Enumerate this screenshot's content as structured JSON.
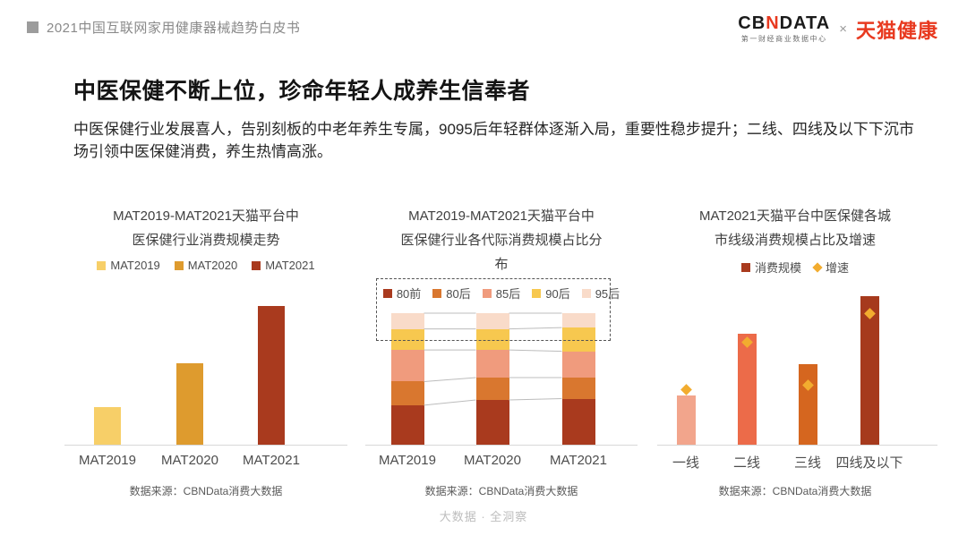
{
  "header": {
    "doc_title": "2021中国互联网家用健康器械趋势白皮书",
    "logo": {
      "cbn_prefix": "CB",
      "cbn_mid": "N",
      "cbn_suffix": "DATA",
      "cbn_tagline": "第一财经商业数据中心",
      "separator": "×",
      "partner": "天猫健康",
      "brand_red": "#e8391f"
    }
  },
  "headline": {
    "title": "中医保健不断上位，珍命年轻人成养生信奉者",
    "description": "中医保健行业发展喜人，告别刻板的中老年养生专属，9095后年轻群体逐渐入局，重要性稳步提升；二线、四线及以下下沉市场引领中医保健消费，养生热情高涨。"
  },
  "footer": {
    "slogan": "大数据 · 全洞察"
  },
  "chart_data": [
    {
      "id": "scale-trend",
      "type": "bar",
      "title": "MAT2019-MAT2021天猫平台中医保健行业消费规模走势",
      "title_lines": [
        "MAT2019-MAT2021天猫平台中",
        "医保健行业消费规模走势"
      ],
      "categories": [
        "MAT2019",
        "MAT2020",
        "MAT2021"
      ],
      "values": [
        27,
        59,
        100
      ],
      "ylim": [
        0,
        100
      ],
      "grid": false,
      "legend_position": "top",
      "note": "no numeric axis or data labels shown; values are relative bar heights (MAT2021 = 100)",
      "colors": [
        "#F7CF68",
        "#DE9B2E",
        "#A93A1E"
      ],
      "legend": [
        {
          "label": "MAT2019",
          "color": "#F7CF68",
          "marker": "square"
        },
        {
          "label": "MAT2020",
          "color": "#DE9B2E",
          "marker": "square"
        },
        {
          "label": "MAT2021",
          "color": "#A93A1E",
          "marker": "square"
        }
      ],
      "source": "数据来源：CBNData消费大数据"
    },
    {
      "id": "generation-share",
      "type": "stacked-bar-100",
      "title": "MAT2019-MAT2021天猫平台中医保健行业各代际消费规模占比分布",
      "title_lines": [
        "MAT2019-MAT2021天猫平台中",
        "医保健行业各代际消费规模占比分",
        "布"
      ],
      "categories": [
        "MAT2019",
        "MAT2020",
        "MAT2021"
      ],
      "series": [
        {
          "name": "80前",
          "color": "#A93A1E",
          "values": [
            30,
            34,
            35
          ]
        },
        {
          "name": "80后",
          "color": "#D9772F",
          "values": [
            18,
            17,
            16
          ]
        },
        {
          "name": "85后",
          "color": "#F09B7D",
          "values": [
            24,
            21,
            20
          ]
        },
        {
          "name": "90后",
          "color": "#F7C84F",
          "values": [
            16,
            16,
            18
          ]
        },
        {
          "name": "95后",
          "color": "#F9DBC9",
          "values": [
            12,
            12,
            11
          ]
        }
      ],
      "ylim": [
        0,
        100
      ],
      "grid": false,
      "legend_position": "top",
      "note": "100% stacked bars; percentages estimated from segment heights (no data labels shown); dashed box highlights legend plus 90后/95后 segments; gray connector lines link segment boundaries",
      "connector_color": "#bcbcbc",
      "highlight_box_color": "#545454",
      "source": "数据来源：CBNData消费大数据"
    },
    {
      "id": "city-tier",
      "type": "bar",
      "title": "MAT2021天猫平台中医保健各城市线级消费规模占比及增速",
      "title_lines": [
        "MAT2021天猫平台中医保健各城",
        "市线级消费规模占比及增速"
      ],
      "categories": [
        "一线",
        "二线",
        "三线",
        "四线及以下"
      ],
      "series": [
        {
          "name": "消费规模",
          "type": "bar",
          "colors": [
            "#F2A58C",
            "#EC6B49",
            "#D5661F",
            "#A63A1D"
          ],
          "values": [
            33,
            75,
            54,
            100
          ]
        },
        {
          "name": "增速",
          "type": "diamond-marker",
          "color": "#F2AC2F",
          "values": [
            37,
            69,
            40,
            88
          ]
        }
      ],
      "ylim": [
        0,
        100
      ],
      "grid": false,
      "legend_position": "top",
      "note": "no numeric axis or data labels shown; values are relative heights (四线及以下 bar = 100)",
      "legend": [
        {
          "label": "消费规模",
          "color": "#A93A1E",
          "marker": "square"
        },
        {
          "label": "增速",
          "color": "#F2AC2F",
          "marker": "diamond"
        }
      ],
      "source": "数据来源：CBNData消费大数据"
    }
  ]
}
